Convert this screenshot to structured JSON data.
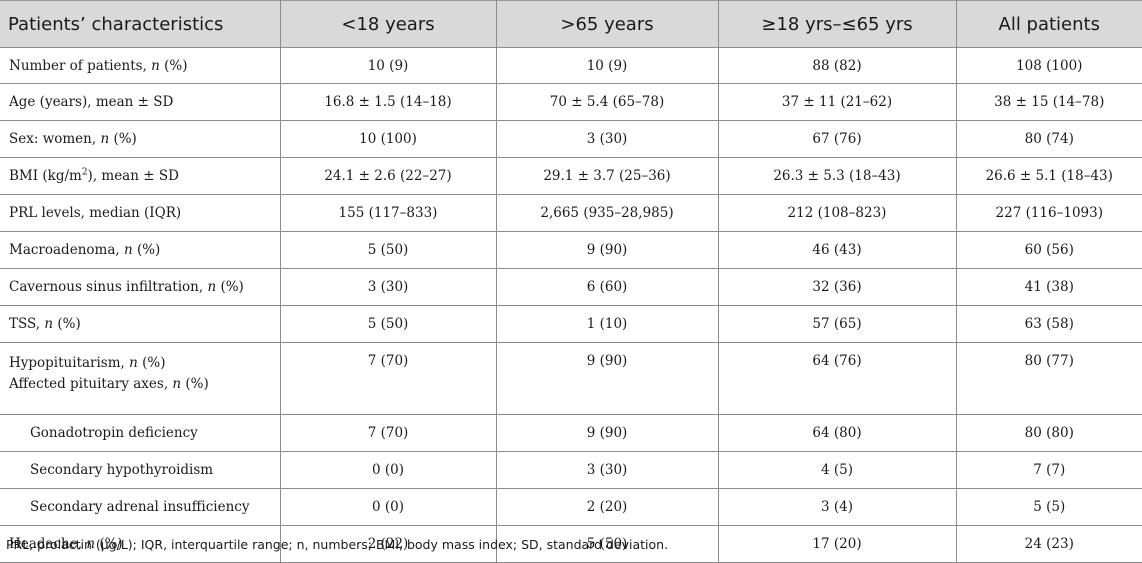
{
  "header": {
    "col0": "Patients’ characteristics",
    "col1": "<18 years",
    "col2": ">65 years",
    "col3": "≥18 yrs–≤65 yrs",
    "col4": "All patients"
  },
  "rows": {
    "r0": {
      "label": "Number of patients, ",
      "label_it": "n",
      "label_tail": " (%)",
      "v1": "10 (9)",
      "v2": "10 (9)",
      "v3": "88 (82)",
      "v4": "108 (100)"
    },
    "r1": {
      "label": "Age (years), mean ± SD",
      "v1": "16.8 ± 1.5 (14–18)",
      "v2": "70 ± 5.4 (65–78)",
      "v3": "37 ± 11 (21–62)",
      "v4": "38 ± 15 (14–78)"
    },
    "r2": {
      "label": "Sex: women, ",
      "label_it": "n",
      "label_tail": " (%)",
      "v1": "10 (100)",
      "v2": "3 (30)",
      "v3": "67 (76)",
      "v4": "80 (74)"
    },
    "r3": {
      "label": "BMI (kg/m",
      "label_sup": "2",
      "label_tail": "), mean ± SD",
      "v1": "24.1 ± 2.6 (22–27)",
      "v2": "29.1 ± 3.7 (25–36)",
      "v3": "26.3 ± 5.3 (18–43)",
      "v4": "26.6 ± 5.1 (18–43)"
    },
    "r4": {
      "label": "PRL levels, median (IQR)",
      "v1": "155 (117–833)",
      "v2": "2,665 (935–28,985)",
      "v3": "212 (108–823)",
      "v4": "227 (116–1093)"
    },
    "r5": {
      "label": "Macroadenoma, ",
      "label_it": "n",
      "label_tail": " (%)",
      "v1": "5 (50)",
      "v2": "9 (90)",
      "v3": "46 (43)",
      "v4": "60 (56)"
    },
    "r6": {
      "label": "Cavernous sinus infiltration, ",
      "label_it": "n",
      "label_tail": " (%)",
      "v1": "3 (30)",
      "v2": "6 (60)",
      "v3": "32 (36)",
      "v4": "41 (38)"
    },
    "r7": {
      "label": "TSS, ",
      "label_it": "n",
      "label_tail": " (%)",
      "v1": "5 (50)",
      "v2": "1 (10)",
      "v3": "57 (65)",
      "v4": "63 (58)"
    },
    "r8": {
      "label": "Hypopituitarism, ",
      "label_it": "n",
      "label_tail": " (%)",
      "label2": "Affected pituitary axes, ",
      "label2_it": "n",
      "label2_tail": " (%)",
      "v1": "7 (70)",
      "v2": "9 (90)",
      "v3": "64 (76)",
      "v4": "80 (77)"
    },
    "r9": {
      "label": "Gonadotropin deficiency",
      "v1": "7 (70)",
      "v2": "9 (90)",
      "v3": "64 (80)",
      "v4": "80 (80)"
    },
    "r10": {
      "label": "Secondary hypothyroidism",
      "v1": "0 (0)",
      "v2": "3 (30)",
      "v3": "4 (5)",
      "v4": "7 (7)"
    },
    "r11": {
      "label": "Secondary adrenal insufficiency",
      "v1": "0 (0)",
      "v2": "2 (20)",
      "v3": "3 (4)",
      "v4": "5 (5)"
    },
    "r12": {
      "label": "Headache, ",
      "label_it": "n",
      "label_tail": " (%)",
      "v1": "2 (22)",
      "v2": "5 (50)",
      "v3": "17 (20)",
      "v4": "24 (23)"
    }
  },
  "footnote": "PRL, prolactin (μg/L); IQR, interquartile range; n, numbers; BMI, body mass index; SD, standard deviation."
}
